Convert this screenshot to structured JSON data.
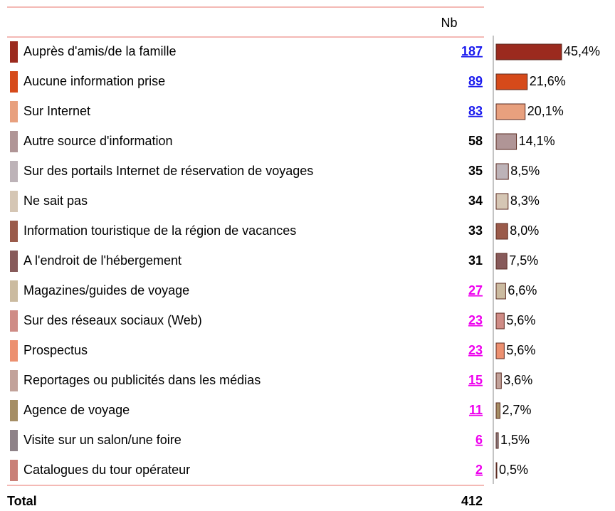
{
  "chart_data": {
    "type": "bar",
    "orientation": "horizontal",
    "column_header": "Nb",
    "categories": [
      "Auprès d'amis/de la famille",
      "Aucune information prise",
      "Sur Internet",
      "Autre source d'information",
      "Sur des portails Internet de réservation de voyages",
      "Ne sait pas",
      "Information touristique de la région de vacances",
      "A l'endroit de l'hébergement",
      "Magazines/guides de voyage",
      "Sur des réseaux sociaux (Web)",
      "Prospectus",
      "Reportages ou publicités dans les médias",
      "Agence de voyage",
      "Visite sur un salon/une foire",
      "Catalogues du tour opérateur"
    ],
    "counts": [
      187,
      89,
      83,
      58,
      35,
      34,
      33,
      31,
      27,
      23,
      23,
      15,
      11,
      6,
      2
    ],
    "values": [
      45.4,
      21.6,
      20.1,
      14.1,
      8.5,
      8.3,
      8.0,
      7.5,
      6.6,
      5.6,
      5.6,
      3.6,
      2.7,
      1.5,
      0.5
    ],
    "value_labels": [
      "45,4%",
      "21,6%",
      "20,1%",
      "14,1%",
      "8,5%",
      "8,3%",
      "8,0%",
      "7,5%",
      "6,6%",
      "5,6%",
      "5,6%",
      "3,6%",
      "2,7%",
      "1,5%",
      "0,5%"
    ],
    "colors": [
      "#9b2a1e",
      "#d64a1a",
      "#e8a07e",
      "#b09596",
      "#bdb3b8",
      "#d5c6b4",
      "#9a5a4a",
      "#875a5a",
      "#cbbba0",
      "#cf8c86",
      "#ec9070",
      "#c2a29a",
      "#a58e65",
      "#8e8288",
      "#c98078"
    ],
    "count_colors": [
      "#1a1aee",
      "#1a1aee",
      "#1a1aee",
      "#000000",
      "#000000",
      "#000000",
      "#000000",
      "#000000",
      "#ee00ee",
      "#ee00ee",
      "#ee00ee",
      "#ee00ee",
      "#ee00ee",
      "#ee00ee",
      "#ee00ee"
    ],
    "total_label": "Total",
    "total": 412
  }
}
